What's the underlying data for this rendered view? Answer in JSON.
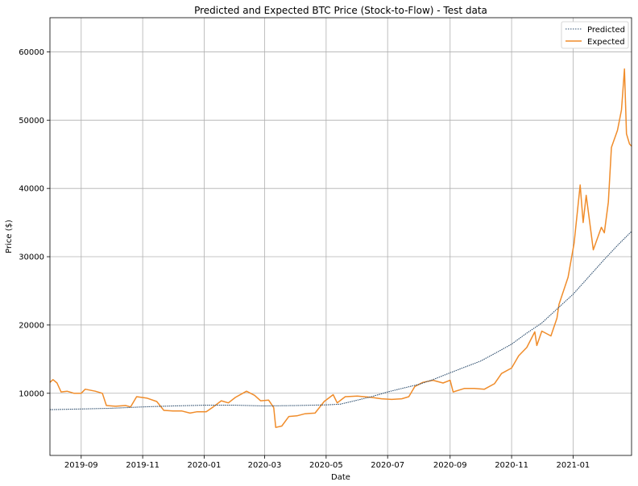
{
  "chart_data": {
    "type": "line",
    "title": "Predicted and Expected BTC Price (Stock-to-Flow) - Test data",
    "xlabel": "Date",
    "ylabel": "Price ($)",
    "xlim": [
      "2019-08-01",
      "2021-02-28"
    ],
    "ylim": [
      900,
      65000
    ],
    "x_ticks": [
      "2019-09",
      "2019-11",
      "2020-01",
      "2020-03",
      "2020-05",
      "2020-07",
      "2020-09",
      "2020-11",
      "2021-01"
    ],
    "y_ticks": [
      10000,
      20000,
      30000,
      40000,
      50000,
      60000
    ],
    "grid": true,
    "legend": {
      "position": "top-right",
      "entries": [
        "Predicted",
        "Expected"
      ]
    },
    "colors": {
      "Predicted": "#2f4f6f",
      "Expected": "#f08c2a"
    },
    "series": [
      {
        "name": "Predicted",
        "points": [
          [
            "2019-08-01",
            7600
          ],
          [
            "2019-09-01",
            7700
          ],
          [
            "2019-10-01",
            7800
          ],
          [
            "2019-11-01",
            8000
          ],
          [
            "2019-12-01",
            8150
          ],
          [
            "2020-01-01",
            8250
          ],
          [
            "2020-02-01",
            8250
          ],
          [
            "2020-03-01",
            8150
          ],
          [
            "2020-04-01",
            8200
          ],
          [
            "2020-05-01",
            8300
          ],
          [
            "2020-05-15",
            8400
          ],
          [
            "2020-06-01",
            9000
          ],
          [
            "2020-06-15",
            9500
          ],
          [
            "2020-07-01",
            10200
          ],
          [
            "2020-07-15",
            10700
          ],
          [
            "2020-08-01",
            11300
          ],
          [
            "2020-08-15",
            12000
          ],
          [
            "2020-09-01",
            13000
          ],
          [
            "2020-09-15",
            13800
          ],
          [
            "2020-10-01",
            14700
          ],
          [
            "2020-10-15",
            15800
          ],
          [
            "2020-11-01",
            17200
          ],
          [
            "2020-11-15",
            18700
          ],
          [
            "2020-12-01",
            20300
          ],
          [
            "2020-12-15",
            22200
          ],
          [
            "2021-01-01",
            24500
          ],
          [
            "2021-01-15",
            26800
          ],
          [
            "2021-02-01",
            29600
          ],
          [
            "2021-02-15",
            31800
          ],
          [
            "2021-02-28",
            33700
          ]
        ]
      },
      {
        "name": "Expected",
        "points": [
          [
            "2019-08-01",
            11600
          ],
          [
            "2019-08-04",
            12000
          ],
          [
            "2019-08-08",
            11500
          ],
          [
            "2019-08-12",
            10200
          ],
          [
            "2019-08-18",
            10300
          ],
          [
            "2019-08-25",
            10000
          ],
          [
            "2019-09-01",
            10000
          ],
          [
            "2019-09-05",
            10600
          ],
          [
            "2019-09-15",
            10300
          ],
          [
            "2019-09-22",
            10000
          ],
          [
            "2019-09-26",
            8200
          ],
          [
            "2019-10-05",
            8100
          ],
          [
            "2019-10-15",
            8200
          ],
          [
            "2019-10-20",
            8000
          ],
          [
            "2019-10-26",
            9500
          ],
          [
            "2019-11-05",
            9300
          ],
          [
            "2019-11-15",
            8800
          ],
          [
            "2019-11-22",
            7500
          ],
          [
            "2019-12-01",
            7400
          ],
          [
            "2019-12-10",
            7400
          ],
          [
            "2019-12-18",
            7100
          ],
          [
            "2019-12-25",
            7300
          ],
          [
            "2020-01-03",
            7300
          ],
          [
            "2020-01-10",
            8000
          ],
          [
            "2020-01-18",
            8900
          ],
          [
            "2020-01-25",
            8600
          ],
          [
            "2020-02-01",
            9400
          ],
          [
            "2020-02-12",
            10300
          ],
          [
            "2020-02-20",
            9700
          ],
          [
            "2020-02-26",
            8900
          ],
          [
            "2020-03-05",
            9000
          ],
          [
            "2020-03-10",
            7900
          ],
          [
            "2020-03-12",
            5000
          ],
          [
            "2020-03-18",
            5200
          ],
          [
            "2020-03-25",
            6600
          ],
          [
            "2020-04-02",
            6700
          ],
          [
            "2020-04-10",
            7000
          ],
          [
            "2020-04-20",
            7100
          ],
          [
            "2020-04-29",
            8800
          ],
          [
            "2020-05-08",
            9800
          ],
          [
            "2020-05-12",
            8600
          ],
          [
            "2020-05-20",
            9500
          ],
          [
            "2020-06-01",
            9600
          ],
          [
            "2020-06-15",
            9400
          ],
          [
            "2020-06-25",
            9200
          ],
          [
            "2020-07-05",
            9100
          ],
          [
            "2020-07-15",
            9200
          ],
          [
            "2020-07-22",
            9500
          ],
          [
            "2020-07-28",
            11000
          ],
          [
            "2020-08-05",
            11600
          ],
          [
            "2020-08-15",
            11900
          ],
          [
            "2020-08-25",
            11500
          ],
          [
            "2020-09-01",
            11900
          ],
          [
            "2020-09-04",
            10200
          ],
          [
            "2020-09-15",
            10700
          ],
          [
            "2020-09-25",
            10700
          ],
          [
            "2020-10-05",
            10600
          ],
          [
            "2020-10-15",
            11400
          ],
          [
            "2020-10-22",
            12900
          ],
          [
            "2020-11-01",
            13700
          ],
          [
            "2020-11-08",
            15500
          ],
          [
            "2020-11-16",
            16700
          ],
          [
            "2020-11-24",
            19000
          ],
          [
            "2020-11-26",
            17000
          ],
          [
            "2020-12-01",
            19100
          ],
          [
            "2020-12-10",
            18400
          ],
          [
            "2020-12-16",
            21000
          ],
          [
            "2020-12-18",
            23000
          ],
          [
            "2020-12-27",
            27000
          ],
          [
            "2021-01-02",
            32000
          ],
          [
            "2021-01-08",
            40500
          ],
          [
            "2021-01-11",
            35000
          ],
          [
            "2021-01-14",
            39000
          ],
          [
            "2021-01-21",
            31000
          ],
          [
            "2021-01-29",
            34300
          ],
          [
            "2021-02-01",
            33500
          ],
          [
            "2021-02-05",
            38000
          ],
          [
            "2021-02-08",
            46000
          ],
          [
            "2021-02-14",
            48500
          ],
          [
            "2021-02-18",
            51500
          ],
          [
            "2021-02-21",
            57500
          ],
          [
            "2021-02-23",
            48000
          ],
          [
            "2021-02-26",
            46500
          ],
          [
            "2021-02-28",
            46200
          ]
        ]
      }
    ]
  }
}
